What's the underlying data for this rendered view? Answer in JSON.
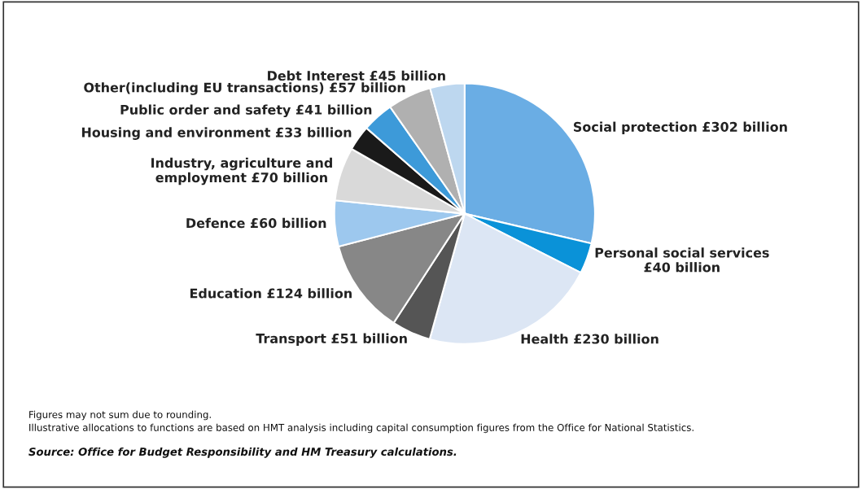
{
  "chart_data": {
    "type": "pie",
    "categories": [
      "Social protection £302 billion",
      "Personal social services\n£40 billion",
      "Health £230 billion",
      "Transport £51 billion",
      "Education £124 billion",
      "Defence £60 billion",
      "Industry, agriculture and\nemployment £70 billion",
      "Housing and environment £33 billion",
      "Public order and safety £41 billion",
      "Other(including EU transactions) £57 billion",
      "Debt Interest £45 billion"
    ],
    "values": [
      302,
      40,
      230,
      51,
      124,
      60,
      70,
      33,
      41,
      57,
      45
    ],
    "colors": [
      "#6aade4",
      "#0a92d8",
      "#dce6f4",
      "#555555",
      "#878787",
      "#9dc8ee",
      "#d9d9d9",
      "#1a1a1a",
      "#3d9ad9",
      "#b0b0b0",
      "#bdd7ef"
    ],
    "annotations": [
      "Figures may not sum due to rounding.\nIllustrative allocations to functions are based on HMT analysis including capital consumption figures from the Office for National Statistics.",
      "Source: Office for Budget Responsibility and HM Treasury calculations."
    ]
  }
}
